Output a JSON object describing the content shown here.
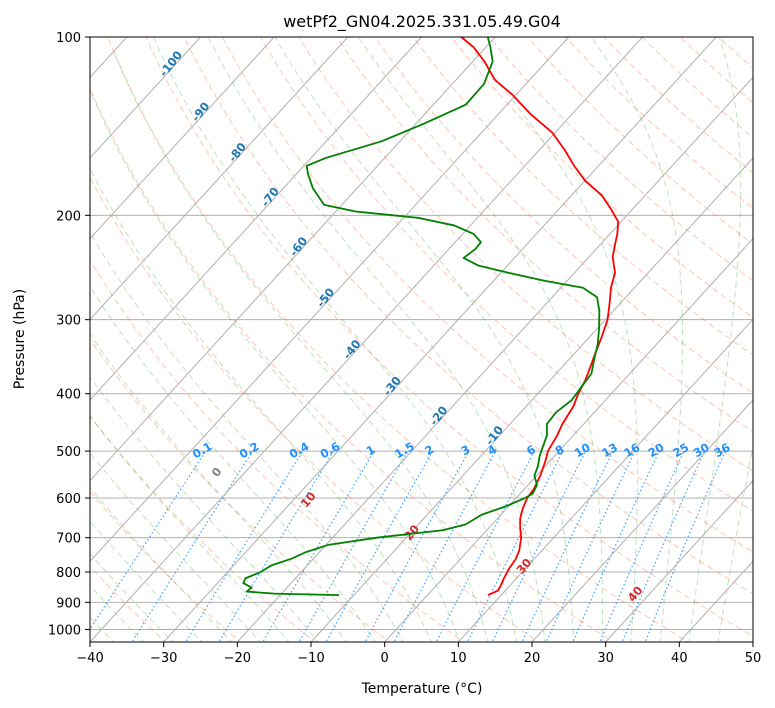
{
  "chart_data": {
    "type": "skew-t",
    "title": "wetPf2_GN04.2025.331.05.49.G04",
    "xlabel": "Temperature (°C)",
    "ylabel": "Pressure (hPa)",
    "xlim": [
      -40,
      50
    ],
    "ylim_hpa": [
      1050,
      100
    ],
    "x_ticks": [
      -40,
      -30,
      -20,
      -10,
      0,
      10,
      20,
      30,
      40,
      50
    ],
    "y_ticks": [
      100,
      200,
      300,
      400,
      500,
      600,
      700,
      800,
      900,
      1000
    ],
    "grid": true,
    "series": [
      {
        "color": "#ff0000",
        "points": [
          [
            875,
            8.2
          ],
          [
            860,
            9.0
          ],
          [
            845,
            8.8
          ],
          [
            820,
            8.3
          ],
          [
            790,
            7.8
          ],
          [
            760,
            7.5
          ],
          [
            735,
            6.9
          ],
          [
            700,
            5.6
          ],
          [
            675,
            4.3
          ],
          [
            650,
            3.1
          ],
          [
            625,
            2.2
          ],
          [
            600,
            1.5
          ],
          [
            580,
            1.3
          ],
          [
            550,
            0.5
          ],
          [
            520,
            -0.6
          ],
          [
            500,
            -1.5
          ],
          [
            470,
            -2.2
          ],
          [
            450,
            -2.9
          ],
          [
            420,
            -3.6
          ],
          [
            400,
            -4.5
          ],
          [
            380,
            -5.2
          ],
          [
            360,
            -6.2
          ],
          [
            340,
            -7.3
          ],
          [
            320,
            -8.4
          ],
          [
            300,
            -9.7
          ],
          [
            280,
            -11.6
          ],
          [
            265,
            -13.2
          ],
          [
            250,
            -14.5
          ],
          [
            235,
            -16.8
          ],
          [
            225,
            -17.9
          ],
          [
            215,
            -19.0
          ],
          [
            205,
            -20.4
          ],
          [
            195,
            -23.0
          ],
          [
            185,
            -25.9
          ],
          [
            175,
            -29.9
          ],
          [
            165,
            -33.3
          ],
          [
            155,
            -36.6
          ],
          [
            145,
            -40.4
          ],
          [
            135,
            -45.6
          ],
          [
            125,
            -50.6
          ],
          [
            118,
            -54.8
          ],
          [
            110,
            -58.4
          ],
          [
            104,
            -61.7
          ],
          [
            100,
            -64.6
          ]
        ]
      },
      {
        "color": "#008000",
        "points": [
          [
            875,
            -12.0
          ],
          [
            870,
            -21.0
          ],
          [
            863,
            -25.0
          ],
          [
            850,
            -24.8
          ],
          [
            835,
            -26.5
          ],
          [
            820,
            -26.8
          ],
          [
            800,
            -25.5
          ],
          [
            780,
            -24.9
          ],
          [
            760,
            -23.0
          ],
          [
            740,
            -21.8
          ],
          [
            720,
            -19.7
          ],
          [
            700,
            -14.0
          ],
          [
            680,
            -6.0
          ],
          [
            665,
            -3.6
          ],
          [
            640,
            -2.6
          ],
          [
            620,
            -0.4
          ],
          [
            600,
            1.2
          ],
          [
            590,
            1.7
          ],
          [
            570,
            1.2
          ],
          [
            550,
            -0.3
          ],
          [
            530,
            -1.0
          ],
          [
            510,
            -2.0
          ],
          [
            490,
            -2.8
          ],
          [
            470,
            -3.6
          ],
          [
            450,
            -5.0
          ],
          [
            430,
            -5.2
          ],
          [
            410,
            -4.6
          ],
          [
            390,
            -4.9
          ],
          [
            370,
            -5.2
          ],
          [
            350,
            -6.6
          ],
          [
            330,
            -8.0
          ],
          [
            310,
            -9.8
          ],
          [
            290,
            -11.9
          ],
          [
            275,
            -13.9
          ],
          [
            265,
            -17.0
          ],
          [
            258,
            -23.0
          ],
          [
            250,
            -29.0
          ],
          [
            243,
            -34.0
          ],
          [
            236,
            -36.9
          ],
          [
            228,
            -36.4
          ],
          [
            222,
            -36.5
          ],
          [
            215,
            -38.5
          ],
          [
            208,
            -42.2
          ],
          [
            202,
            -48.0
          ],
          [
            197,
            -57.3
          ],
          [
            192,
            -62.4
          ],
          [
            180,
            -66.0
          ],
          [
            170,
            -68.5
          ],
          [
            165,
            -69.6
          ],
          [
            160,
            -68.0
          ],
          [
            150,
            -62.5
          ],
          [
            140,
            -58.9
          ],
          [
            130,
            -55.6
          ],
          [
            120,
            -55.7
          ],
          [
            110,
            -57.3
          ],
          [
            104,
            -59.4
          ],
          [
            100,
            -61.0
          ]
        ]
      }
    ],
    "isotherm_labels": [
      "-100",
      "-90",
      "-80",
      "-70",
      "-60",
      "-50",
      "-40",
      "-30",
      "-20",
      "-10"
    ],
    "mixing_ratio_labels": [
      "0.1",
      "0.2",
      "0.4",
      "0.6",
      "1",
      "1.5",
      "2",
      "3",
      "4",
      "6",
      "8",
      "10",
      "13",
      "16",
      "20",
      "25",
      "30",
      "36"
    ],
    "dry_adiabat_labels": [
      "0",
      "10",
      "20",
      "30",
      "40"
    ],
    "colors": {
      "temperature": "#ff0000",
      "dewpoint": "#008000",
      "isotherm_text": "#1f77b4",
      "mixing_text": "#1e90ff",
      "adiabat_text": "#d62728",
      "grid": "#b0b0b0"
    }
  }
}
